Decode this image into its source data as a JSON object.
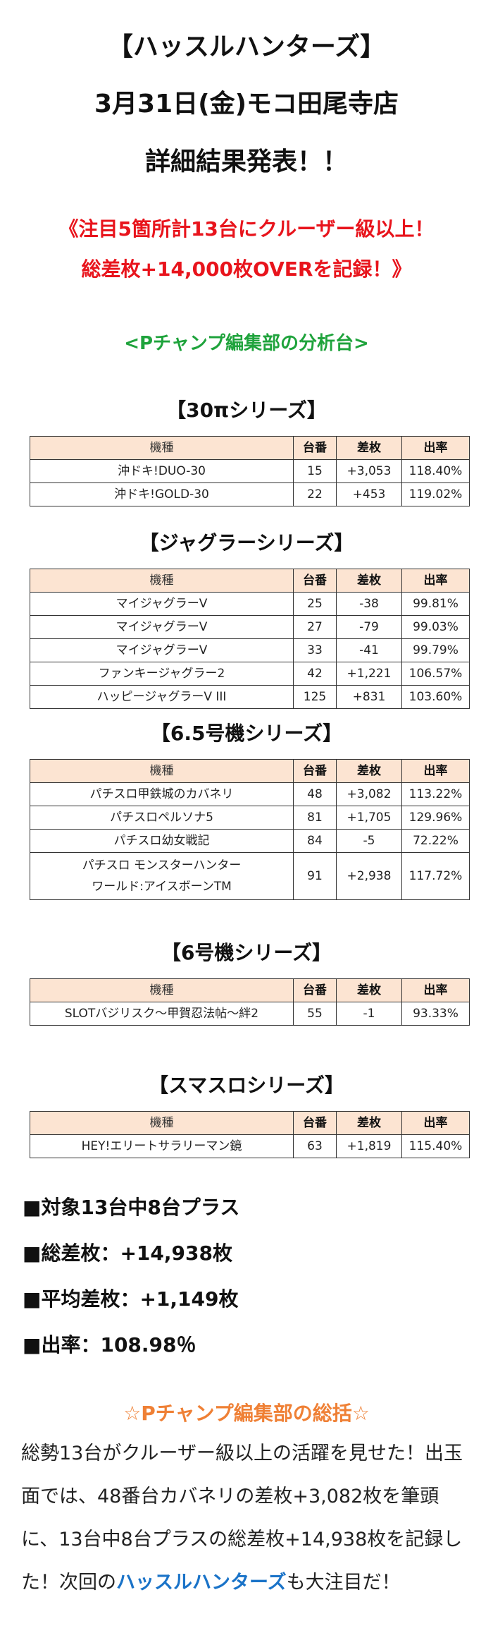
{
  "header": {
    "line1": "【ハッスルハンターズ】",
    "line2": "3月31日(金)モコ田尾寺店",
    "line3": "詳細結果発表！！"
  },
  "highlight": {
    "line1": "《注目5箇所計13台にクルーザー級以上！",
    "line2": "総差枚+14,000枚OVERを記録！》"
  },
  "subtitle": "<Pチャンプ編集部の分析台>",
  "columns": {
    "model": "機種",
    "number": "台番",
    "diff": "差枚",
    "rate": "出率"
  },
  "sections": [
    {
      "title": "【30πシリーズ】",
      "rows": [
        {
          "model": "沖ドキ!DUO-30",
          "number": "15",
          "diff": "+3,053",
          "rate": "118.40%"
        },
        {
          "model": "沖ドキ!GOLD-30",
          "number": "22",
          "diff": "+453",
          "rate": "119.02%"
        }
      ]
    },
    {
      "title": "【ジャグラーシリーズ】",
      "rows": [
        {
          "model": "マイジャグラーV",
          "number": "25",
          "diff": "-38",
          "rate": "99.81%"
        },
        {
          "model": "マイジャグラーV",
          "number": "27",
          "diff": "-79",
          "rate": "99.03%"
        },
        {
          "model": "マイジャグラーV",
          "number": "33",
          "diff": "-41",
          "rate": "99.79%"
        },
        {
          "model": "ファンキージャグラー2",
          "number": "42",
          "diff": "+1,221",
          "rate": "106.57%"
        },
        {
          "model": "ハッピージャグラーV III",
          "number": "125",
          "diff": "+831",
          "rate": "103.60%"
        }
      ]
    },
    {
      "title": "【6.5号機シリーズ】",
      "rows": [
        {
          "model": "パチスロ甲鉄城のカバネリ",
          "number": "48",
          "diff": "+3,082",
          "rate": "113.22%"
        },
        {
          "model": "パチスロペルソナ5",
          "number": "81",
          "diff": "+1,705",
          "rate": "129.96%"
        },
        {
          "model": "パチスロ幼女戦記",
          "number": "84",
          "diff": "-5",
          "rate": "72.22%"
        },
        {
          "model": "パチスロ モンスターハンター",
          "model2": "ワールド:アイスボーンTM",
          "number": "91",
          "diff": "+2,938",
          "rate": "117.72%"
        }
      ]
    },
    {
      "title": "【6号機シリーズ】",
      "rows": [
        {
          "model": "SLOTバジリスク～甲賀忍法帖～絆2",
          "number": "55",
          "diff": "-1",
          "rate": "93.33%"
        }
      ]
    },
    {
      "title": "【スマスロシリーズ】",
      "rows": [
        {
          "model": "HEY!エリートサラリーマン鏡",
          "number": "63",
          "diff": "+1,819",
          "rate": "115.40%"
        }
      ]
    }
  ],
  "stats": [
    "■対象13台中8台プラス",
    "■総差枚：+14,938枚",
    "■平均差枚：+1,149枚",
    "■出率：108.98％"
  ],
  "summary": {
    "title": "☆Pチャンプ編集部の総括☆",
    "body": "総勢13台がクルーザー級以上の活躍を見せた！出玉面では、48番台カバネリの差枚+3,082枚を筆頭に、13台中8台プラスの総差枚+14,938枚を記録した！次回の",
    "link": "ハッスルハンターズ",
    "tail": "も大注目だ！"
  },
  "colors": {
    "red": "#e8141c",
    "green": "#1fa33c",
    "orange": "#ef8035",
    "blue": "#1a73c8",
    "header_bg": "#fce4d2"
  }
}
